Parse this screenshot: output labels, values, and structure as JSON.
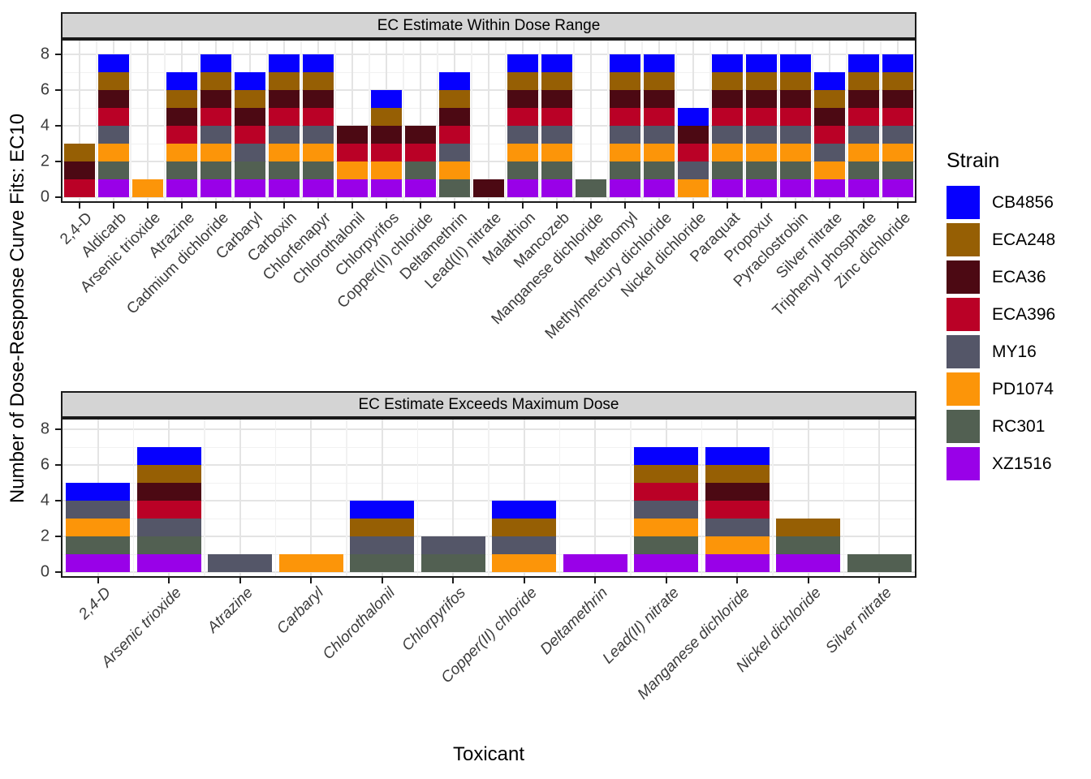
{
  "chart_data": {
    "type": "bar",
    "stacked": true,
    "segment_value": 1,
    "xlabel": "Toxicant",
    "ylabel": "Number of Dose-Response Curve Fits: EC10",
    "yticks": [
      0,
      2,
      4,
      6,
      8
    ],
    "ylim": [
      0,
      8
    ],
    "grid": "major and minor horizontal + vertical, light gray on white",
    "legend_position": "right",
    "stack_order_bottom_to_top": [
      "XZ1516",
      "RC301",
      "PD1074",
      "MY16",
      "ECA396",
      "ECA36",
      "ECA248",
      "CB4856"
    ],
    "legend": {
      "title": "Strain",
      "entries": [
        {
          "label": "CB4856",
          "color": "#0600FE"
        },
        {
          "label": "ECA248",
          "color": "#965F04"
        },
        {
          "label": "ECA36",
          "color": "#4C0913"
        },
        {
          "label": "ECA396",
          "color": "#BA0126"
        },
        {
          "label": "MY16",
          "color": "#545668"
        },
        {
          "label": "PD1074",
          "color": "#FC9509"
        },
        {
          "label": "RC301",
          "color": "#526052"
        },
        {
          "label": "XZ1516",
          "color": "#9901E8"
        }
      ]
    },
    "panel_style": {
      "strip_fill": "#D4D4D4",
      "border_color": "#1A1A1A",
      "grid_major_color": "#E4E4E4",
      "grid_minor_color": "#F1F1F1",
      "axis_text_color": "#3C3C3C"
    },
    "facets": [
      {
        "title": "EC Estimate Within Dose Range",
        "italic_x_labels": false,
        "bars": [
          {
            "category": "2,4-D",
            "total": 3,
            "segments": [
              "ECA396",
              "ECA36",
              "ECA248"
            ]
          },
          {
            "category": "Aldicarb",
            "total": 8,
            "segments": [
              "XZ1516",
              "RC301",
              "PD1074",
              "MY16",
              "ECA396",
              "ECA36",
              "ECA248",
              "CB4856"
            ]
          },
          {
            "category": "Arsenic trioxide",
            "total": 1,
            "segments": [
              "PD1074"
            ]
          },
          {
            "category": "Atrazine",
            "total": 7,
            "segments": [
              "XZ1516",
              "RC301",
              "PD1074",
              "ECA396",
              "ECA36",
              "ECA248",
              "CB4856"
            ]
          },
          {
            "category": "Cadmium dichloride",
            "total": 8,
            "segments": [
              "XZ1516",
              "RC301",
              "PD1074",
              "MY16",
              "ECA396",
              "ECA36",
              "ECA248",
              "CB4856"
            ]
          },
          {
            "category": "Carbaryl",
            "total": 7,
            "segments": [
              "XZ1516",
              "RC301",
              "MY16",
              "ECA396",
              "ECA36",
              "ECA248",
              "CB4856"
            ]
          },
          {
            "category": "Carboxin",
            "total": 8,
            "segments": [
              "XZ1516",
              "RC301",
              "PD1074",
              "MY16",
              "ECA396",
              "ECA36",
              "ECA248",
              "CB4856"
            ]
          },
          {
            "category": "Chlorfenapyr",
            "total": 8,
            "segments": [
              "XZ1516",
              "RC301",
              "PD1074",
              "MY16",
              "ECA396",
              "ECA36",
              "ECA248",
              "CB4856"
            ]
          },
          {
            "category": "Chlorothalonil",
            "total": 4,
            "segments": [
              "XZ1516",
              "PD1074",
              "ECA396",
              "ECA36"
            ]
          },
          {
            "category": "Chlorpyrifos",
            "total": 6,
            "segments": [
              "XZ1516",
              "PD1074",
              "ECA396",
              "ECA36",
              "ECA248",
              "CB4856"
            ]
          },
          {
            "category": "Copper(II) chloride",
            "total": 4,
            "segments": [
              "XZ1516",
              "RC301",
              "ECA396",
              "ECA36"
            ]
          },
          {
            "category": "Deltamethrin",
            "total": 7,
            "segments": [
              "RC301",
              "PD1074",
              "MY16",
              "ECA396",
              "ECA36",
              "ECA248",
              "CB4856"
            ]
          },
          {
            "category": "Lead(II) nitrate",
            "total": 1,
            "segments": [
              "ECA36"
            ]
          },
          {
            "category": "Malathion",
            "total": 8,
            "segments": [
              "XZ1516",
              "RC301",
              "PD1074",
              "MY16",
              "ECA396",
              "ECA36",
              "ECA248",
              "CB4856"
            ]
          },
          {
            "category": "Mancozeb",
            "total": 8,
            "segments": [
              "XZ1516",
              "RC301",
              "PD1074",
              "MY16",
              "ECA396",
              "ECA36",
              "ECA248",
              "CB4856"
            ]
          },
          {
            "category": "Manganese dichloride",
            "total": 1,
            "segments": [
              "RC301"
            ]
          },
          {
            "category": "Methomyl",
            "total": 8,
            "segments": [
              "XZ1516",
              "RC301",
              "PD1074",
              "MY16",
              "ECA396",
              "ECA36",
              "ECA248",
              "CB4856"
            ]
          },
          {
            "category": "Methylmercury dichloride",
            "total": 8,
            "segments": [
              "XZ1516",
              "RC301",
              "PD1074",
              "MY16",
              "ECA396",
              "ECA36",
              "ECA248",
              "CB4856"
            ]
          },
          {
            "category": "Nickel dichloride",
            "total": 5,
            "segments": [
              "PD1074",
              "MY16",
              "ECA396",
              "ECA36",
              "CB4856"
            ]
          },
          {
            "category": "Paraquat",
            "total": 8,
            "segments": [
              "XZ1516",
              "RC301",
              "PD1074",
              "MY16",
              "ECA396",
              "ECA36",
              "ECA248",
              "CB4856"
            ]
          },
          {
            "category": "Propoxur",
            "total": 8,
            "segments": [
              "XZ1516",
              "RC301",
              "PD1074",
              "MY16",
              "ECA396",
              "ECA36",
              "ECA248",
              "CB4856"
            ]
          },
          {
            "category": "Pyraclostrobin",
            "total": 8,
            "segments": [
              "XZ1516",
              "RC301",
              "PD1074",
              "MY16",
              "ECA396",
              "ECA36",
              "ECA248",
              "CB4856"
            ]
          },
          {
            "category": "Silver nitrate",
            "total": 7,
            "segments": [
              "XZ1516",
              "PD1074",
              "MY16",
              "ECA396",
              "ECA36",
              "ECA248",
              "CB4856"
            ]
          },
          {
            "category": "Triphenyl phosphate",
            "total": 8,
            "segments": [
              "XZ1516",
              "RC301",
              "PD1074",
              "MY16",
              "ECA396",
              "ECA36",
              "ECA248",
              "CB4856"
            ]
          },
          {
            "category": "Zinc dichloride",
            "total": 8,
            "segments": [
              "XZ1516",
              "RC301",
              "PD1074",
              "MY16",
              "ECA396",
              "ECA36",
              "ECA248",
              "CB4856"
            ]
          }
        ]
      },
      {
        "title": "EC Estimate Exceeds Maximum Dose",
        "italic_x_labels": true,
        "bars": [
          {
            "category": "2,4-D",
            "total": 5,
            "segments": [
              "XZ1516",
              "RC301",
              "PD1074",
              "MY16",
              "CB4856"
            ]
          },
          {
            "category": "Arsenic trioxide",
            "total": 7,
            "segments": [
              "XZ1516",
              "RC301",
              "MY16",
              "ECA396",
              "ECA36",
              "ECA248",
              "CB4856"
            ]
          },
          {
            "category": "Atrazine",
            "total": 1,
            "segments": [
              "MY16"
            ]
          },
          {
            "category": "Carbaryl",
            "total": 1,
            "segments": [
              "PD1074"
            ]
          },
          {
            "category": "Chlorothalonil",
            "total": 4,
            "segments": [
              "RC301",
              "MY16",
              "ECA248",
              "CB4856"
            ]
          },
          {
            "category": "Chlorpyrifos",
            "total": 2,
            "segments": [
              "RC301",
              "MY16"
            ]
          },
          {
            "category": "Copper(II) chloride",
            "total": 4,
            "segments": [
              "PD1074",
              "MY16",
              "ECA248",
              "CB4856"
            ]
          },
          {
            "category": "Deltamethrin",
            "total": 1,
            "segments": [
              "XZ1516"
            ]
          },
          {
            "category": "Lead(II) nitrate",
            "total": 7,
            "segments": [
              "XZ1516",
              "RC301",
              "PD1074",
              "MY16",
              "ECA396",
              "ECA248",
              "CB4856"
            ]
          },
          {
            "category": "Manganese dichloride",
            "total": 7,
            "segments": [
              "XZ1516",
              "PD1074",
              "MY16",
              "ECA396",
              "ECA36",
              "ECA248",
              "CB4856"
            ]
          },
          {
            "category": "Nickel dichloride",
            "total": 3,
            "segments": [
              "XZ1516",
              "RC301",
              "ECA248"
            ]
          },
          {
            "category": "Silver nitrate",
            "total": 1,
            "segments": [
              "RC301"
            ]
          }
        ]
      }
    ]
  }
}
